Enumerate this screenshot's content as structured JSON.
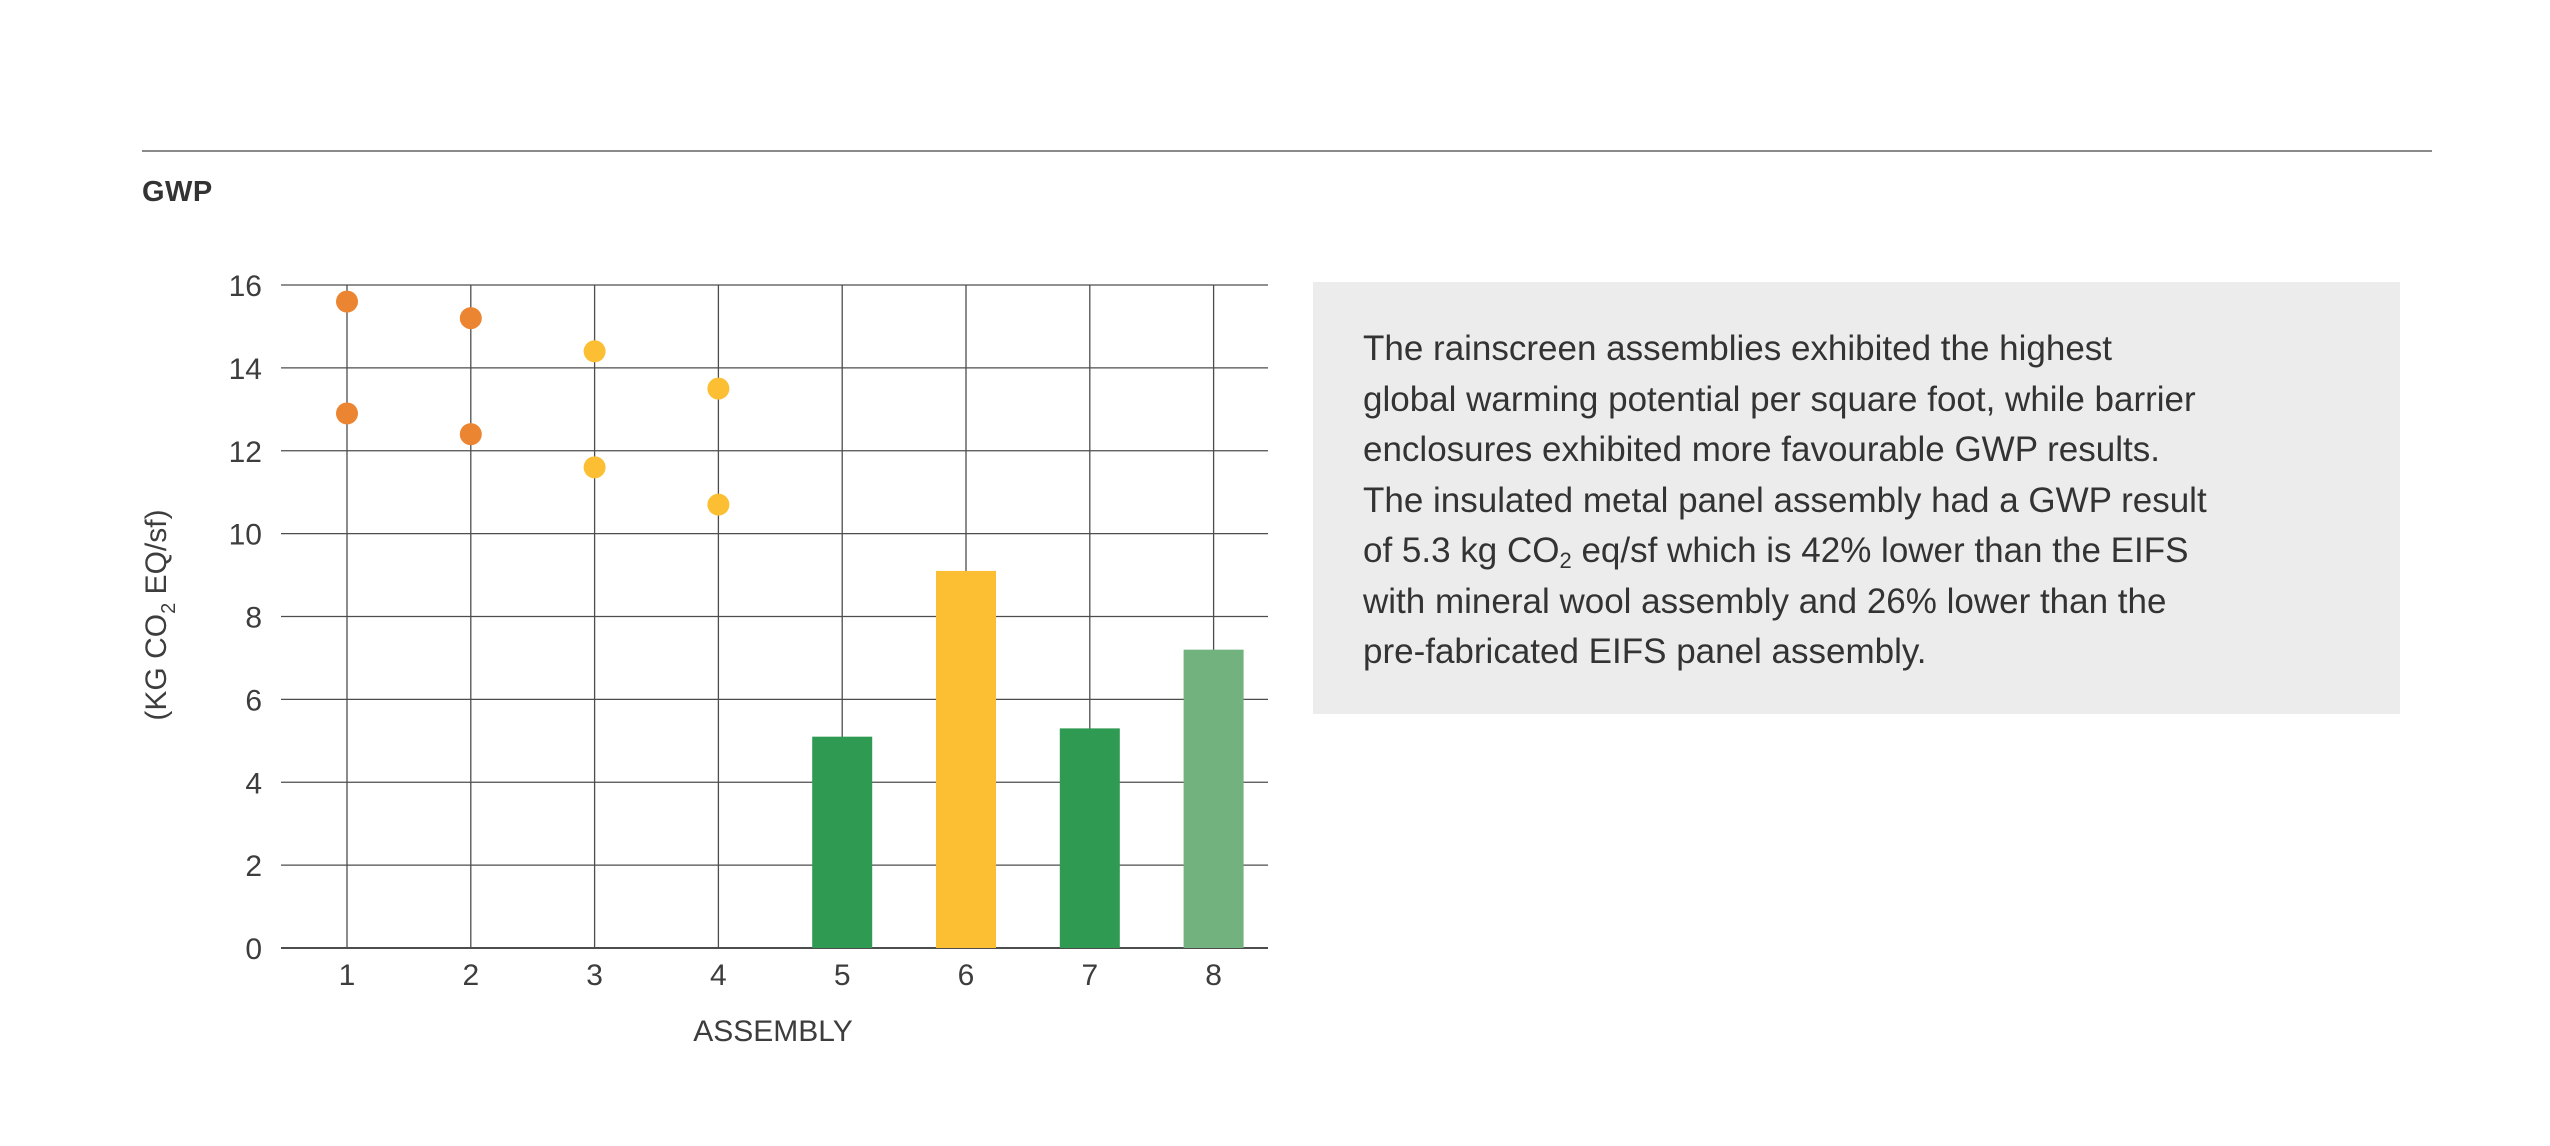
{
  "section_title": "GWP",
  "description": {
    "lines": [
      {
        "text": "The rainscreen assemblies exhibited the highest"
      },
      {
        "text": "global warming potential per square foot, while barrier"
      },
      {
        "text": "enclosures exhibited more favourable GWP results."
      },
      {
        "text": "The insulated metal panel assembly had a GWP result"
      },
      {
        "before": "of 5.3 kg CO",
        "sub": "2",
        "after": " eq/sf which is 42% lower than the EIFS"
      },
      {
        "text": "with mineral wool assembly and 26% lower than the"
      },
      {
        "text": "pre-fabricated EIFS panel assembly."
      }
    ]
  },
  "chart_data": {
    "type": "bar",
    "xlabel": "ASSEMBLY",
    "ylabel": {
      "before": "(KG CO",
      "sub": "2",
      "after": " EQ/sf)"
    },
    "ylim": [
      0,
      16
    ],
    "yticks": [
      0,
      2,
      4,
      6,
      8,
      10,
      12,
      14,
      16
    ],
    "categories": [
      "1",
      "2",
      "3",
      "4",
      "5",
      "6",
      "7",
      "8"
    ],
    "grid": true,
    "legend": "none",
    "ranges": [
      {
        "category": "1",
        "values": [
          15.6,
          12.9
        ],
        "color": "#ec8532"
      },
      {
        "category": "2",
        "values": [
          15.2,
          12.4
        ],
        "color": "#ec8532"
      },
      {
        "category": "3",
        "values": [
          14.4,
          11.6
        ],
        "color": "#fcbf34"
      },
      {
        "category": "4",
        "values": [
          13.5,
          10.7
        ],
        "color": "#fcbf34"
      }
    ],
    "bars": [
      {
        "category": "5",
        "value": 5.1,
        "color": "#2e9a52"
      },
      {
        "category": "6",
        "value": 9.1,
        "color": "#fcbf34"
      },
      {
        "category": "7",
        "value": 5.3,
        "color": "#2e9a52"
      },
      {
        "category": "8",
        "value": 7.2,
        "color": "#71b27e"
      }
    ]
  }
}
